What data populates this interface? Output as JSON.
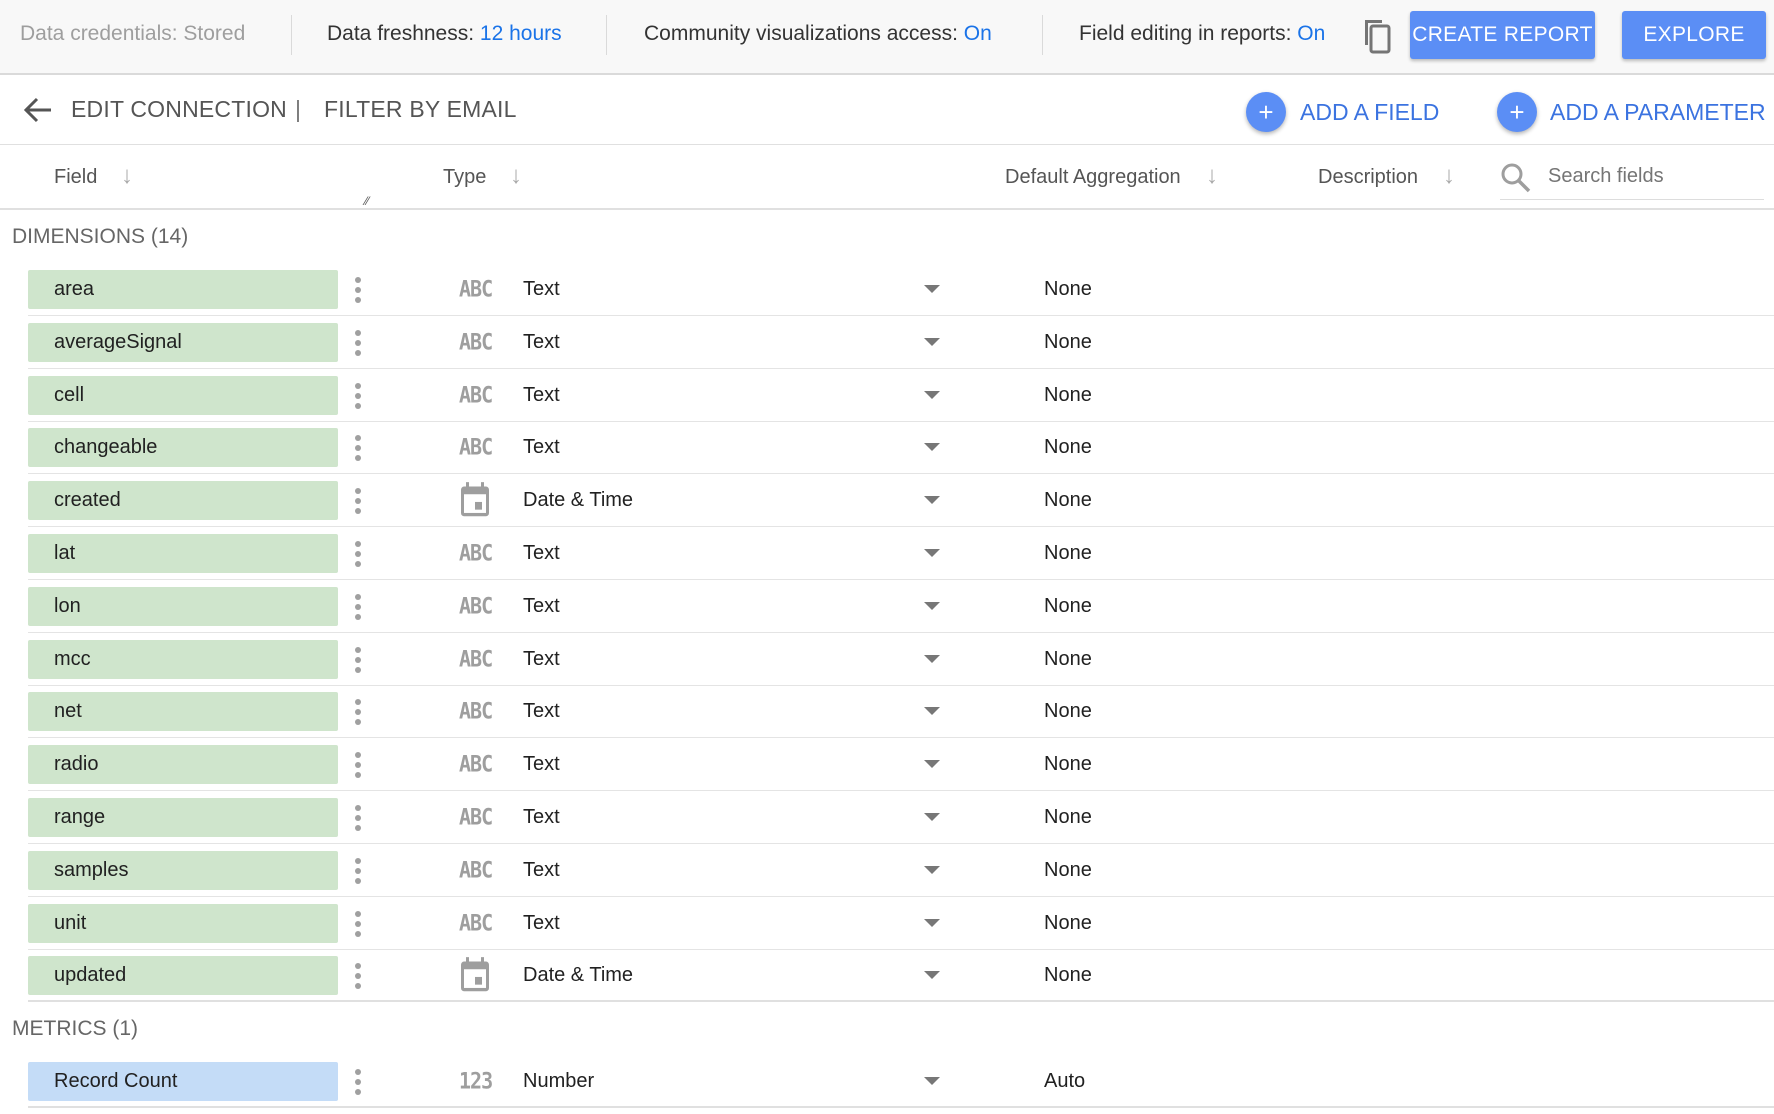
{
  "topbar": {
    "credentials": "Data credentials: Stored",
    "freshness_label": "Data freshness:",
    "freshness_value": "12 hours",
    "community_label": "Community visualizations access:",
    "community_value": "On",
    "editing_label": "Field editing in reports:",
    "editing_value": "On",
    "create_report": "CREATE REPORT",
    "explore": "EXPLORE"
  },
  "subbar": {
    "edit_connection": "EDIT CONNECTION",
    "separator": "|",
    "filter": "FILTER BY EMAIL",
    "add_field": "ADD A FIELD",
    "add_parameter": "ADD A PARAMETER",
    "plus": "+"
  },
  "columns": {
    "field": "Field",
    "type": "Type",
    "aggregation": "Default Aggregation",
    "description": "Description",
    "search_placeholder": "Search fields",
    "sort_arrow": "↓"
  },
  "dimensions": {
    "label": "DIMENSIONS (14)",
    "rows": [
      {
        "name": "area",
        "icon": "ABC",
        "type": "Text",
        "agg": "None"
      },
      {
        "name": "averageSignal",
        "icon": "ABC",
        "type": "Text",
        "agg": "None"
      },
      {
        "name": "cell",
        "icon": "ABC",
        "type": "Text",
        "agg": "None"
      },
      {
        "name": "changeable",
        "icon": "ABC",
        "type": "Text",
        "agg": "None"
      },
      {
        "name": "created",
        "icon": "calendar",
        "type": "Date & Time",
        "agg": "None"
      },
      {
        "name": "lat",
        "icon": "ABC",
        "type": "Text",
        "agg": "None"
      },
      {
        "name": "lon",
        "icon": "ABC",
        "type": "Text",
        "agg": "None"
      },
      {
        "name": "mcc",
        "icon": "ABC",
        "type": "Text",
        "agg": "None"
      },
      {
        "name": "net",
        "icon": "ABC",
        "type": "Text",
        "agg": "None"
      },
      {
        "name": "radio",
        "icon": "ABC",
        "type": "Text",
        "agg": "None"
      },
      {
        "name": "range",
        "icon": "ABC",
        "type": "Text",
        "agg": "None"
      },
      {
        "name": "samples",
        "icon": "ABC",
        "type": "Text",
        "agg": "None"
      },
      {
        "name": "unit",
        "icon": "ABC",
        "type": "Text",
        "agg": "None"
      },
      {
        "name": "updated",
        "icon": "calendar",
        "type": "Date & Time",
        "agg": "None"
      }
    ]
  },
  "metrics": {
    "label": "METRICS (1)",
    "rows": [
      {
        "name": "Record Count",
        "icon": "123",
        "type": "Number",
        "agg": "Auto"
      }
    ]
  },
  "colors": {
    "dimension": "#cfe5cc",
    "metric": "#c4dcf7",
    "accent": "#5b8ef5",
    "link": "#1a73e8"
  }
}
